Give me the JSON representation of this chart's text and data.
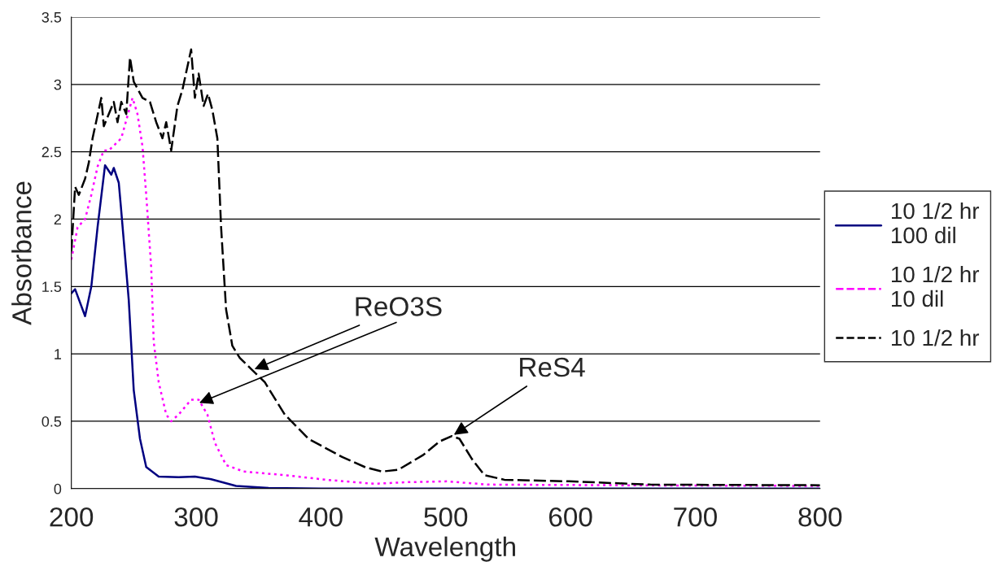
{
  "chart_data": {
    "type": "line",
    "xlabel": "Wavelength",
    "ylabel": "Absorbance",
    "xlim": [
      200,
      800
    ],
    "xticks": [
      200,
      300,
      400,
      500,
      600,
      700,
      800
    ],
    "ylim": [
      0,
      3.5
    ],
    "yticks": [
      0,
      0.5,
      1,
      1.5,
      2,
      2.5,
      3,
      3.5
    ],
    "grid": "y",
    "legend": "right",
    "series": [
      {
        "name": "10 1/2 hr\n100 dil",
        "color": "#000080",
        "line_style": "solid",
        "x": [
          200,
          203,
          211,
          216,
          221,
          227,
          232,
          234,
          238,
          240,
          246,
          250,
          255,
          260,
          270,
          286,
          299,
          312,
          332,
          358,
          400,
          500,
          600,
          700,
          800
        ],
        "values": [
          1.45,
          1.48,
          1.28,
          1.5,
          1.94,
          2.4,
          2.33,
          2.38,
          2.27,
          2.06,
          1.4,
          0.73,
          0.37,
          0.16,
          0.09,
          0.085,
          0.09,
          0.07,
          0.02,
          0.005,
          0,
          0,
          0,
          0,
          0
        ]
      },
      {
        "name": "10 1/2 hr\n10 dil",
        "color": "#ff00ff",
        "line_style": "dotted",
        "x": [
          200,
          205,
          211,
          216,
          221,
          226,
          230,
          240,
          249,
          253,
          257,
          260,
          264,
          266,
          270,
          276,
          280,
          286,
          296,
          302,
          309,
          315,
          324,
          338,
          371,
          404,
          443,
          469,
          501,
          534,
          664,
          800
        ],
        "values": [
          1.7,
          1.94,
          2.0,
          2.18,
          2.39,
          2.51,
          2.51,
          2.6,
          2.9,
          2.78,
          2.54,
          2.18,
          1.64,
          1.09,
          0.79,
          0.55,
          0.5,
          0.55,
          0.66,
          0.66,
          0.55,
          0.34,
          0.175,
          0.127,
          0.1,
          0.066,
          0.036,
          0.048,
          0.054,
          0.03,
          0.024,
          0.02
        ]
      },
      {
        "name": "10 1/2 hr",
        "color": "#000000",
        "line_style": "dashed",
        "x": [
          200,
          203,
          206,
          211,
          214,
          217,
          224,
          226,
          230,
          234,
          237,
          240,
          244,
          247,
          250,
          257,
          263,
          268,
          273,
          276,
          280,
          285,
          289,
          296,
          299,
          302,
          306,
          309.5,
          313,
          317,
          320,
          324,
          329,
          335,
          345,
          355,
          371,
          390,
          417,
          436,
          449,
          462,
          482,
          495,
          505,
          511,
          521,
          531,
          547,
          599,
          664,
          800
        ],
        "values": [
          1.76,
          2.24,
          2.18,
          2.3,
          2.42,
          2.6,
          2.9,
          2.69,
          2.78,
          2.87,
          2.72,
          2.87,
          2.78,
          3.2,
          3.02,
          2.9,
          2.87,
          2.72,
          2.6,
          2.72,
          2.51,
          2.84,
          2.96,
          3.26,
          2.9,
          3.08,
          2.84,
          2.93,
          2.81,
          2.6,
          1.94,
          1.33,
          1.06,
          0.97,
          0.88,
          0.79,
          0.55,
          0.37,
          0.235,
          0.157,
          0.127,
          0.14,
          0.25,
          0.35,
          0.39,
          0.37,
          0.22,
          0.1,
          0.066,
          0.054,
          0.03,
          0.025
        ]
      }
    ],
    "annotations": [
      {
        "text": "ReO3S",
        "x": 345,
        "y": 0.88
      },
      {
        "text": "ReS4",
        "x": 505,
        "y": 0.39
      }
    ]
  }
}
